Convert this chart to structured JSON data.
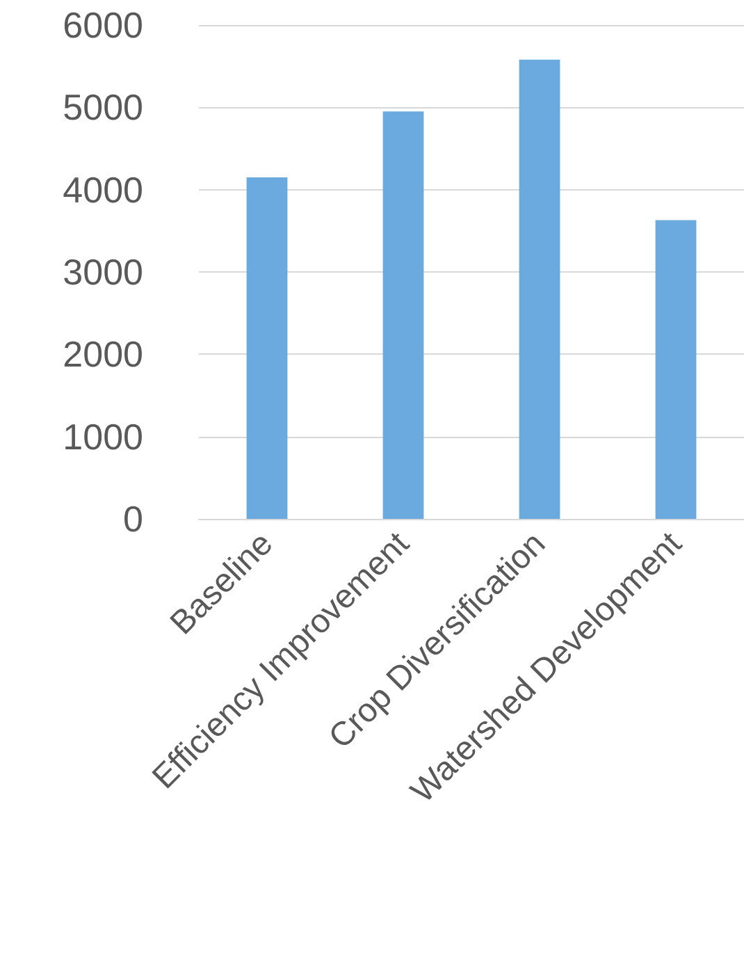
{
  "chart_data": {
    "type": "bar",
    "categories": [
      "Baseline",
      "Efficiency Improvement",
      "Crop Diversification",
      "Watershed Development"
    ],
    "values": [
      4150,
      4950,
      5580,
      3630
    ],
    "color": "#6aaade",
    "ylim": [
      0,
      6000
    ],
    "yticks": [
      0,
      1000,
      2000,
      3000,
      4000,
      5000,
      6000
    ],
    "grid": "y"
  }
}
